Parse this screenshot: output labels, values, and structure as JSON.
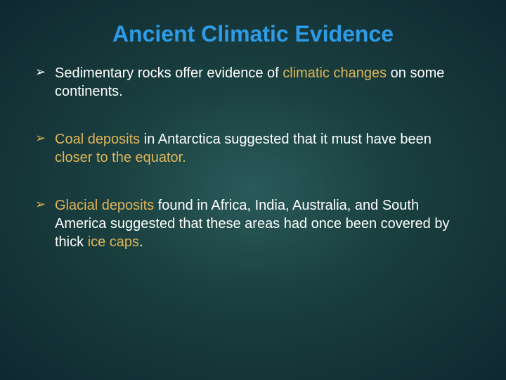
{
  "title": "Ancient Climatic Evidence",
  "background": {
    "gradient_center": "#2a5a5a",
    "gradient_mid": "#1a4040",
    "gradient_edge": "#0f2830"
  },
  "colors": {
    "title_color": "#2e9be6",
    "body_text": "#ffffff",
    "highlight": "#e0b558"
  },
  "typography": {
    "title_fontsize": 32,
    "body_fontsize": 20,
    "font_family": "Arial, sans-serif"
  },
  "bullets": [
    {
      "marker_color": "white",
      "runs": [
        {
          "text": "Sedimentary rocks offer evidence of ",
          "hl": false
        },
        {
          "text": "climatic changes",
          "hl": true
        },
        {
          "text": " on some continents.",
          "hl": false
        }
      ]
    },
    {
      "marker_color": "gold",
      "runs": [
        {
          "text": "Coal deposits",
          "hl": true
        },
        {
          "text": " in Antarctica suggested that it must have been ",
          "hl": false
        },
        {
          "text": "closer to the equator.",
          "hl": true
        }
      ]
    },
    {
      "marker_color": "gold",
      "runs": [
        {
          "text": "Glacial deposits",
          "hl": true
        },
        {
          "text": " found in Africa, India, Australia, and South America suggested that these areas had once been covered by thick ",
          "hl": false
        },
        {
          "text": "ice caps",
          "hl": true
        },
        {
          "text": ".",
          "hl": false
        }
      ]
    }
  ]
}
